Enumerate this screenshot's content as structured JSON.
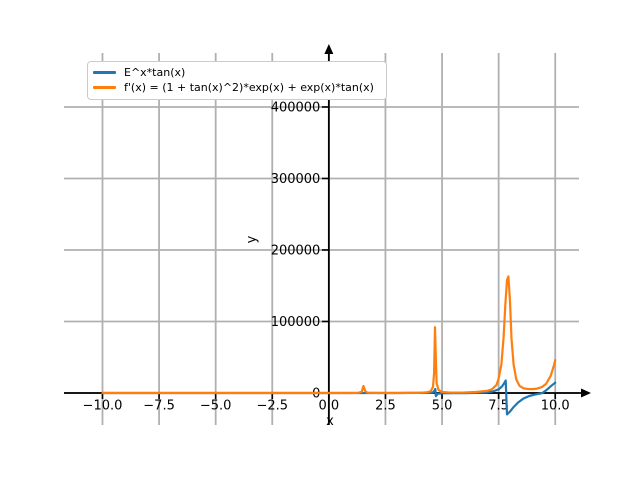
{
  "figure": {
    "background": "#ffffff"
  },
  "chart_data": {
    "type": "line",
    "title": "",
    "xlabel": "x",
    "ylabel": "y",
    "grid": true,
    "grid_color": "#b0b0b0",
    "axis_color": "#000000",
    "legend_position": "upper left",
    "legend_border_color": "#cccccc",
    "xlim": [
      -11.7,
      11.05
    ],
    "ylim": [
      -44800,
      475500
    ],
    "xticks": {
      "values": [
        -10,
        -7.5,
        -5,
        -2.5,
        0,
        2.5,
        5,
        7.5,
        10
      ],
      "labels": [
        "−10.0",
        "−7.5",
        "−5.0",
        "−2.5",
        "0.0",
        "2.5",
        "5.0",
        "7.5",
        "10.0"
      ]
    },
    "yticks": {
      "values": [
        0,
        100000,
        200000,
        300000,
        400000
      ],
      "labels": [
        "0",
        "100000",
        "200000",
        "300000",
        "400000"
      ]
    },
    "series": [
      {
        "name": "E^x*tan(x)",
        "color": "#1f77b4",
        "points": [
          [
            -10,
            0
          ],
          [
            -8,
            0
          ],
          [
            -6,
            0
          ],
          [
            -4,
            0
          ],
          [
            -2,
            0
          ],
          [
            0,
            0
          ],
          [
            1,
            4
          ],
          [
            2,
            -16
          ],
          [
            3,
            -3
          ],
          [
            4,
            63
          ],
          [
            4.5,
            210
          ],
          [
            4.6,
            1000
          ],
          [
            4.66,
            2800
          ],
          [
            4.7,
            5600
          ],
          [
            4.73,
            -4500
          ],
          [
            4.8,
            -1100
          ],
          [
            5,
            -500
          ],
          [
            5.5,
            -170
          ],
          [
            6,
            -120
          ],
          [
            6.5,
            150
          ],
          [
            7,
            950
          ],
          [
            7.25,
            2200
          ],
          [
            7.5,
            5000
          ],
          [
            7.65,
            9000
          ],
          [
            7.75,
            14000
          ],
          [
            7.81,
            17500
          ],
          [
            7.87,
            -30000
          ],
          [
            8,
            -26000
          ],
          [
            8.15,
            -20000
          ],
          [
            8.35,
            -13500
          ],
          [
            8.6,
            -7800
          ],
          [
            8.85,
            -4300
          ],
          [
            9.1,
            -2300
          ],
          [
            9.3,
            -1000
          ],
          [
            9.43,
            0
          ],
          [
            9.6,
            3800
          ],
          [
            9.8,
            9300
          ],
          [
            10,
            14300
          ]
        ]
      },
      {
        "name": "f'(x) = (1 + tan(x)^2)*exp(x) + exp(x)*tan(x)",
        "color": "#ff7f0e",
        "points": [
          [
            -10,
            0
          ],
          [
            -8,
            0
          ],
          [
            -6,
            0
          ],
          [
            -4,
            0
          ],
          [
            -2,
            0
          ],
          [
            0,
            1
          ],
          [
            0.5,
            4
          ],
          [
            1,
            14
          ],
          [
            1.3,
            300
          ],
          [
            1.45,
            1600
          ],
          [
            1.53,
            9800
          ],
          [
            1.6,
            3000
          ],
          [
            1.7,
            400
          ],
          [
            2,
            30
          ],
          [
            2.5,
            15
          ],
          [
            3,
            22
          ],
          [
            3.5,
            60
          ],
          [
            4,
            190
          ],
          [
            4.3,
            800
          ],
          [
            4.5,
            2400
          ],
          [
            4.6,
            8800
          ],
          [
            4.65,
            28000
          ],
          [
            4.69,
            92000
          ],
          [
            4.72,
            55000
          ],
          [
            4.76,
            14000
          ],
          [
            4.85,
            4200
          ],
          [
            5,
            1300
          ],
          [
            5.3,
            650
          ],
          [
            5.6,
            480
          ],
          [
            6,
            600
          ],
          [
            6.5,
            1400
          ],
          [
            7,
            2900
          ],
          [
            7.2,
            5200
          ],
          [
            7.4,
            11000
          ],
          [
            7.5,
            20000
          ],
          [
            7.62,
            40000
          ],
          [
            7.72,
            78000
          ],
          [
            7.8,
            125000
          ],
          [
            7.87,
            158000
          ],
          [
            7.93,
            163000
          ],
          [
            8.0,
            128000
          ],
          [
            8.07,
            76000
          ],
          [
            8.16,
            40000
          ],
          [
            8.28,
            19000
          ],
          [
            8.42,
            10000
          ],
          [
            8.6,
            6600
          ],
          [
            8.8,
            5500
          ],
          [
            9,
            5400
          ],
          [
            9.2,
            6100
          ],
          [
            9.4,
            8000
          ],
          [
            9.6,
            13000
          ],
          [
            9.8,
            24000
          ],
          [
            9.93,
            37000
          ],
          [
            10,
            46000
          ]
        ]
      }
    ]
  }
}
